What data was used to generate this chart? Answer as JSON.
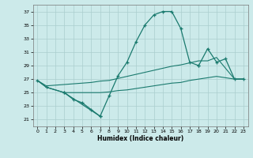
{
  "xlabel": "Humidex (Indice chaleur)",
  "xlim": [
    -0.5,
    23.5
  ],
  "ylim": [
    20.0,
    38.0
  ],
  "yticks": [
    21,
    23,
    25,
    27,
    29,
    31,
    33,
    35,
    37
  ],
  "xticks": [
    0,
    1,
    2,
    3,
    4,
    5,
    6,
    7,
    8,
    9,
    10,
    11,
    12,
    13,
    14,
    15,
    16,
    17,
    18,
    19,
    20,
    21,
    22,
    23
  ],
  "background_color": "#cceaea",
  "line_color": "#1a7a6e",
  "grid_color": "#aacece",
  "line1_x": [
    0,
    1,
    3,
    4,
    5,
    6,
    7
  ],
  "line1_y": [
    26.8,
    25.8,
    25.0,
    24.0,
    23.5,
    22.5,
    21.5
  ],
  "line2_x": [
    3,
    7,
    8,
    9,
    10,
    11,
    12,
    13,
    14,
    15,
    16,
    17,
    18
  ],
  "line2_y": [
    25.0,
    21.5,
    24.5,
    27.5,
    29.5,
    32.5,
    35.0,
    36.5,
    37.0,
    37.0,
    34.5,
    29.5,
    29.0
  ],
  "line3_x": [
    18,
    19,
    20,
    21,
    22,
    23
  ],
  "line3_y": [
    29.0,
    31.5,
    29.5,
    30.0,
    27.0,
    27.0
  ],
  "line_low_x": [
    0,
    1,
    3,
    4,
    5,
    6,
    7,
    8,
    9,
    10,
    11,
    12,
    13,
    14,
    15,
    16,
    17,
    18,
    19,
    20,
    22,
    23
  ],
  "line_low_y": [
    26.8,
    25.8,
    25.0,
    25.0,
    25.0,
    25.0,
    25.0,
    25.1,
    25.3,
    25.4,
    25.6,
    25.8,
    26.0,
    26.2,
    26.4,
    26.5,
    26.8,
    27.0,
    27.2,
    27.4,
    27.0,
    27.0
  ],
  "line_up_x": [
    0,
    1,
    3,
    4,
    5,
    6,
    7,
    8,
    9,
    10,
    11,
    12,
    13,
    14,
    15,
    16,
    17,
    18,
    19,
    20,
    22,
    23
  ],
  "line_up_y": [
    26.8,
    26.0,
    26.2,
    26.3,
    26.4,
    26.5,
    26.7,
    26.8,
    27.1,
    27.4,
    27.7,
    28.0,
    28.3,
    28.6,
    28.9,
    29.1,
    29.4,
    29.7,
    29.7,
    30.2,
    27.0,
    27.0
  ]
}
